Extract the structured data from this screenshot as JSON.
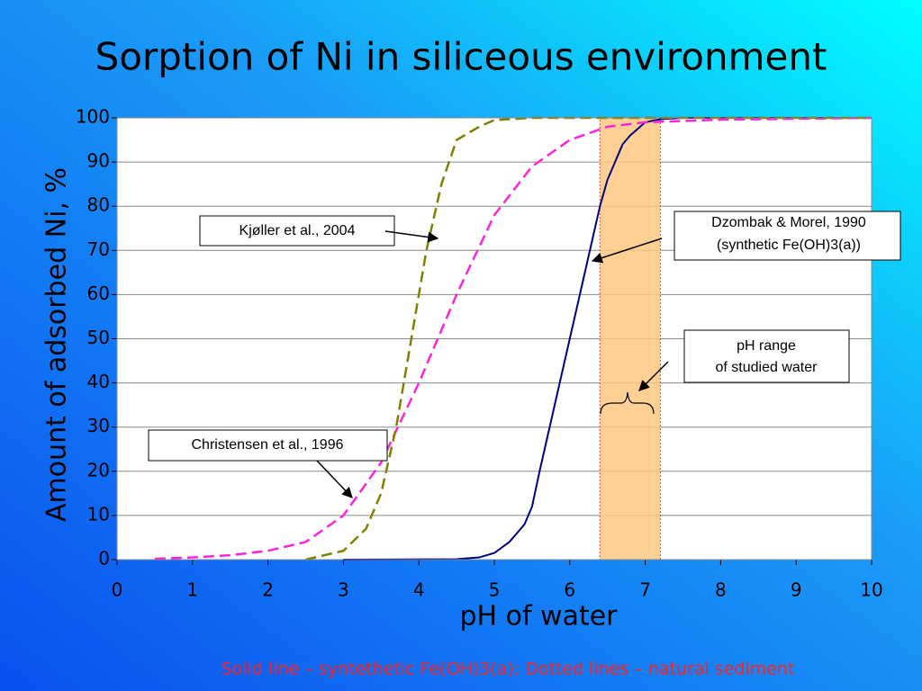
{
  "chart_data": {
    "type": "line",
    "title": "Sorption of Ni in siliceous environment",
    "xlabel": "pH of water",
    "ylabel": "Amount of adsorbed Ni, %",
    "footnote": "Solid line – syntethetic Fe(OH)3(a); Dotted lines – natural sediment",
    "xlim": [
      0,
      10
    ],
    "xticks": [
      0,
      1,
      2,
      3,
      4,
      5,
      6,
      7,
      8,
      9,
      10
    ],
    "ylim": [
      0,
      100
    ],
    "yticks": [
      0,
      10,
      20,
      30,
      40,
      50,
      60,
      70,
      80,
      90,
      100
    ],
    "grid": true,
    "band": {
      "x": [
        6.4,
        7.2
      ],
      "color": "#ffc880",
      "label": [
        "pH range",
        "of studied water"
      ]
    },
    "series": [
      {
        "name": "Dzombak & Morel, 1990",
        "note": "(synthetic Fe(OH)3(a))",
        "color": "#000080",
        "dashed": false,
        "x": [
          3.0,
          4.5,
          4.8,
          5.0,
          5.2,
          5.4,
          5.5,
          5.6,
          5.8,
          6.0,
          6.2,
          6.4,
          6.5,
          6.6,
          6.7,
          6.8,
          7.0,
          7.2,
          7.5,
          10
        ],
        "values": [
          0,
          0.1,
          0.5,
          1.5,
          4,
          8,
          12,
          20,
          35,
          50,
          65,
          80,
          86,
          90,
          94,
          96,
          99,
          99.7,
          100,
          100
        ]
      },
      {
        "name": "Christensen et al., 1996",
        "color": "#ff22dd",
        "dashed": true,
        "x": [
          0.5,
          1,
          1.5,
          2,
          2.5,
          3,
          3.5,
          4,
          4.5,
          5,
          5.5,
          6,
          6.5,
          7,
          8,
          10
        ],
        "values": [
          0.2,
          0.5,
          1,
          2,
          4,
          10,
          22,
          40,
          60,
          78,
          89,
          95,
          98,
          99,
          99.6,
          100
        ]
      },
      {
        "name": "Kjøller et al., 2004",
        "color": "#808000",
        "dashed": true,
        "x": [
          2.5,
          3,
          3.3,
          3.5,
          3.7,
          3.9,
          4.1,
          4.3,
          4.5,
          4.8,
          5.0,
          5.5,
          10
        ],
        "values": [
          0,
          2,
          7,
          15,
          30,
          50,
          70,
          85,
          95,
          98,
          99.5,
          100,
          100
        ]
      }
    ]
  }
}
